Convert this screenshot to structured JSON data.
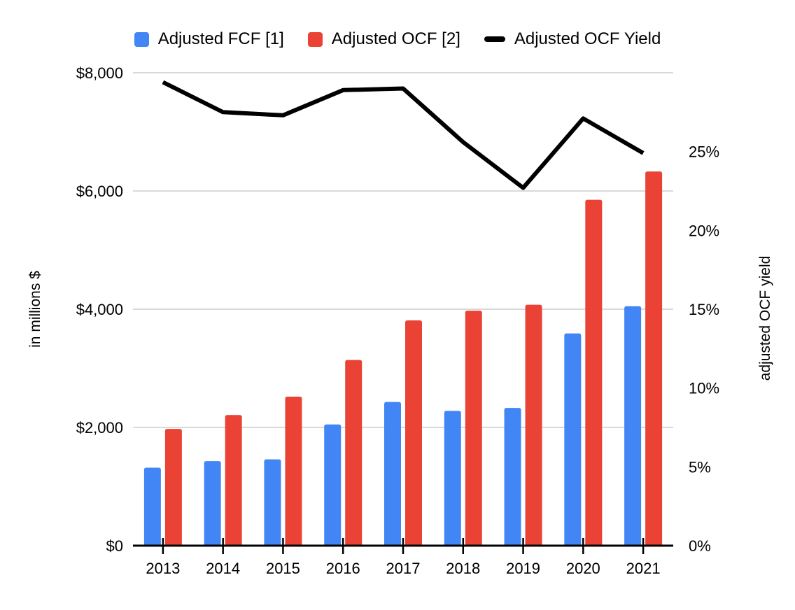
{
  "chart_data": {
    "type": "combo-bar-line",
    "title": "",
    "categories": [
      "2013",
      "2014",
      "2015",
      "2016",
      "2017",
      "2018",
      "2019",
      "2020",
      "2021"
    ],
    "series": [
      {
        "name": "Adjusted FCF [1]",
        "type": "bar",
        "axis": "left",
        "color": "#4285F4",
        "values": [
          1320,
          1430,
          1460,
          2050,
          2430,
          2280,
          2330,
          3590,
          4050
        ]
      },
      {
        "name": "Adjusted OCF [2]",
        "type": "bar",
        "axis": "left",
        "color": "#EA4335",
        "values": [
          1975,
          2210,
          2520,
          3140,
          3810,
          3975,
          4075,
          5850,
          6330
        ]
      },
      {
        "name": "Adjusted OCF Yield",
        "type": "line",
        "axis": "right",
        "color": "#000000",
        "values": [
          29.4,
          27.5,
          27.3,
          28.9,
          29.0,
          25.6,
          22.7,
          27.1,
          24.9
        ]
      }
    ],
    "left_axis": {
      "title": "in millions $",
      "min": 0,
      "max": 8000,
      "tick_values": [
        0,
        2000,
        4000,
        6000,
        8000
      ],
      "tick_labels": [
        "$0",
        "$2,000",
        "$4,000",
        "$6,000",
        "$8,000"
      ]
    },
    "right_axis": {
      "title": "adjusted OCF yield",
      "min": 0,
      "max": 30,
      "tick_values": [
        0,
        5,
        10,
        15,
        20,
        25
      ],
      "tick_labels": [
        "0%",
        "5%",
        "10%",
        "15%",
        "20%",
        "25%"
      ]
    },
    "grid": true,
    "legend_position": "top"
  },
  "colors": {
    "background": "#ffffff",
    "gridline": "#d9d9d9",
    "axis_line": "#000000",
    "text": "#000000",
    "bar_blue": "#4285F4",
    "bar_red": "#EA4335",
    "line_black": "#000000"
  }
}
